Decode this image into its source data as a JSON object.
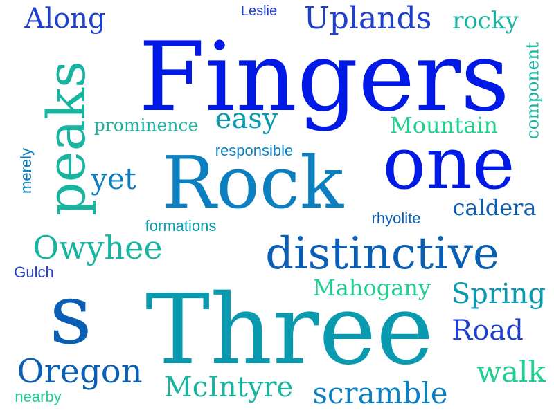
{
  "cloud": {
    "colors": {
      "blue": "#0019e6",
      "royal": "#1f3fcf",
      "steel": "#0a5fb4",
      "cerulean": "#0b7fbf",
      "teal": "#0a9ab0",
      "aqua": "#18b4a0",
      "mint": "#1fd08f"
    },
    "words": {
      "fingers": "Fingers",
      "three": "Three",
      "one": "one",
      "rock": "Rock",
      "s": "s",
      "distinctive": "distinctive",
      "peaks": "peaks",
      "oregon": "Oregon",
      "uplands": "Uplands",
      "along": "Along",
      "owyhee": "Owyhee",
      "scramble": "scramble",
      "mcintyre": "McIntyre",
      "spring": "Spring",
      "mahogany": "Mahogany",
      "road": "Road",
      "walk": "walk",
      "easy": "easy",
      "yet": "yet",
      "caldera": "caldera",
      "mountain": "Mountain",
      "rocky": "rocky",
      "prominence": "prominence",
      "component": "component",
      "responsible": "responsible",
      "formations": "formations",
      "rhyolite": "rhyolite",
      "merely": "merely",
      "gulch": "Gulch",
      "leslie": "Leslie",
      "nearby": "nearby"
    }
  }
}
